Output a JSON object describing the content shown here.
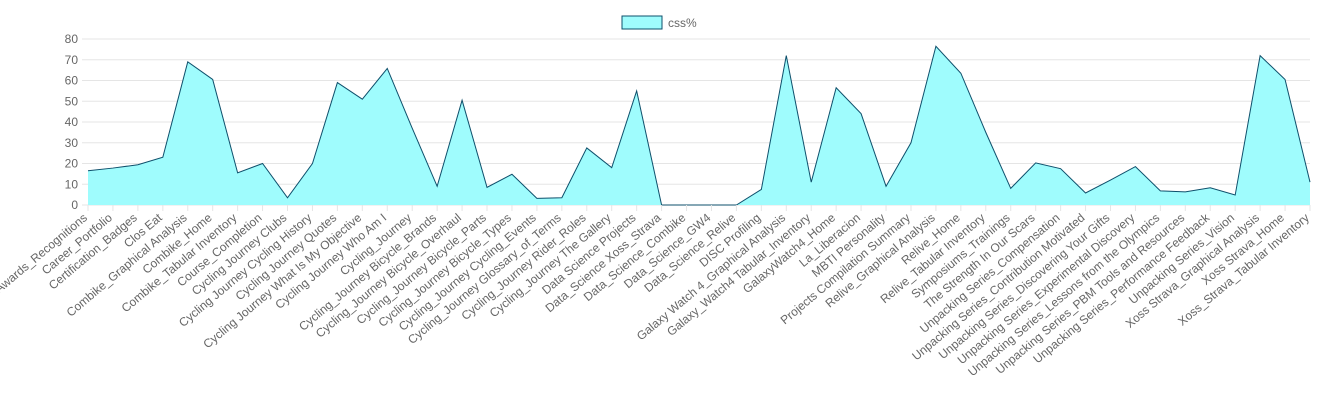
{
  "chart_data": {
    "type": "area",
    "legend": {
      "position": "top",
      "label": "css%"
    },
    "ylim": [
      0,
      80
    ],
    "yticks": [
      0,
      10,
      20,
      30,
      40,
      50,
      60,
      70,
      80
    ],
    "grid": true,
    "colors": {
      "fill": "#9ffcfd",
      "stroke": "#0e4f6b",
      "grid": "#e5e5e5",
      "axis": "#bfbfbf",
      "text": "#666666"
    },
    "series": [
      {
        "name": "css%",
        "values": [
          16.5,
          17.8,
          19.4,
          23,
          69,
          60.5,
          15.5,
          20,
          3.5,
          20,
          59,
          51,
          65.8,
          37,
          9,
          50.5,
          8.5,
          14.8,
          3.2,
          3.5,
          27.5,
          18,
          55,
          0,
          0,
          0,
          0,
          7.5,
          72,
          11,
          56.5,
          44,
          9,
          30,
          76.5,
          63.5,
          35,
          8,
          20.3,
          17.5,
          5.8,
          12,
          18.5,
          6.8,
          6.3,
          8.3,
          4.8,
          72,
          60.5,
          11
        ]
      }
    ],
    "categories": [
      "Awards_Recognitions",
      "Career_Portfolio",
      "Certification_Badges",
      "Clos Eat",
      "Combike_Graphical Analysis",
      "Combike_Home",
      "Combike_Tabular Inventory",
      "Course_Completion",
      "Cycling Journey Clubs",
      "Cycling Journey Cycling History",
      "Cycling Journey Quotes",
      "Cycling Journey What Is My Objective",
      "Cycling Journey Who Am I",
      "Cycling_Journey",
      "Cycling_Journey Bicycle_Brands",
      "Cycling_Journey Bicycle_Overhaul",
      "Cycling_Journey Bicycle_Parts",
      "Cycling_Journey Bicycle_Types",
      "Cycling_Journey Cycling_Events",
      "Cycling_Journey Glossary_of_Terms",
      "Cycling_Journey Rider_Roles",
      "Cycling_Journey The Gallery",
      "Data Science Projects",
      "Data_Science Xoss_Strava",
      "Data_Science_Combike",
      "Data_Science_GW4",
      "Data_Science_Relive",
      "DISC Profiling",
      "Galaxy Watch 4_Graphical Analysis",
      "Galaxy_Watch4 Tabular_Inventory",
      "GalaxyWatch4_Home",
      "La_Liberacion",
      "MBTI Personality",
      "Projects Compilation Summary",
      "Relive_Graphical Analysis",
      "Relive_Home",
      "Relive_Tabular Inventory",
      "Symposiums_Trainings",
      "The Strength In Our Scars",
      "Unpacking Series_Compensation",
      "Unpacking Series_Contribution Motivated",
      "Unpacking Series_Discovering Your Gifts",
      "Unpacking Series_Experimental Discovery",
      "Unpacking Series_Lessons from the Olympics",
      "Unpacking Series_PBM Tools and Resources",
      "Unpacking Series_Performance Feedback",
      "Unpacking Series_Vision",
      "Xoss Strava_Graphical Analysis",
      "Xoss Strava_Home",
      "Xoss_Strava_Tabular Inventory"
    ]
  }
}
